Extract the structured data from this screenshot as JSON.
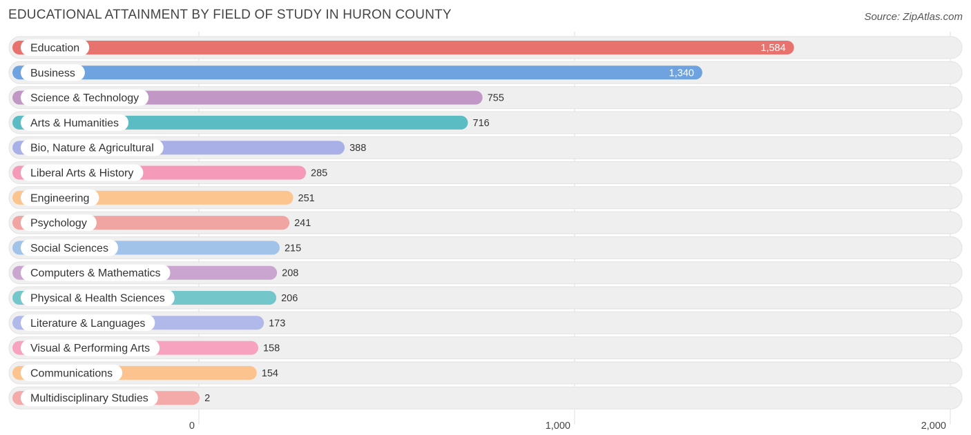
{
  "header": {
    "title": "EDUCATIONAL ATTAINMENT BY FIELD OF STUDY IN HURON COUNTY",
    "source": "Source: ZipAtlas.com"
  },
  "chart_data": {
    "type": "bar",
    "orientation": "horizontal",
    "title": "EDUCATIONAL ATTAINMENT BY FIELD OF STUDY IN HURON COUNTY",
    "categories": [
      "Education",
      "Business",
      "Science & Technology",
      "Arts & Humanities",
      "Bio, Nature & Agricultural",
      "Liberal Arts & History",
      "Engineering",
      "Psychology",
      "Social Sciences",
      "Computers & Mathematics",
      "Physical & Health Sciences",
      "Literature & Languages",
      "Visual & Performing Arts",
      "Communications",
      "Multidisciplinary Studies"
    ],
    "values": [
      1584,
      1340,
      755,
      716,
      388,
      285,
      251,
      241,
      215,
      208,
      206,
      173,
      158,
      154,
      2
    ],
    "value_labels": [
      "1,584",
      "1,340",
      "755",
      "716",
      "388",
      "285",
      "251",
      "241",
      "215",
      "208",
      "206",
      "173",
      "158",
      "154",
      "2"
    ],
    "colors": [
      "#e8726d",
      "#6fa3e0",
      "#c197c6",
      "#5bbcc3",
      "#a9b0e7",
      "#f59ab8",
      "#fcc48f",
      "#f0a5a3",
      "#a1c3ea",
      "#c9a5cf",
      "#73c7cb",
      "#b1b8ea",
      "#f7a2bf",
      "#fcc38f",
      "#f4aaa8"
    ],
    "xlim": [
      0,
      2000
    ],
    "xticks": [
      0,
      1000,
      2000
    ],
    "xtick_labels": [
      "0",
      "1,000",
      "2,000"
    ],
    "grid": true,
    "legend": "none"
  }
}
